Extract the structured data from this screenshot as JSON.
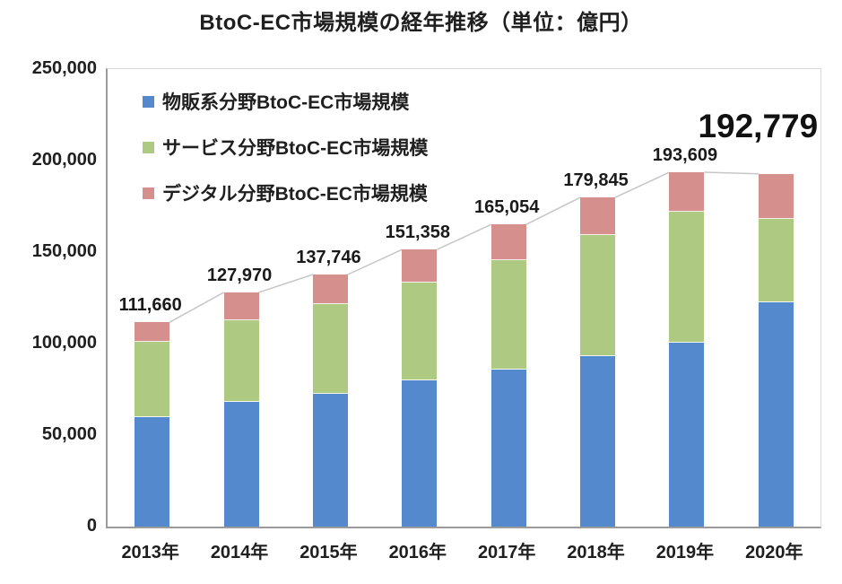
{
  "title": "BtoC-EC市場規模の経年推移（単位：億円）",
  "chart_data": {
    "type": "bar",
    "stacked": true,
    "grid": false,
    "legend_position": "inside-top-left",
    "categories": [
      "2013年",
      "2014年",
      "2015年",
      "2016年",
      "2017年",
      "2018年",
      "2019年",
      "2020年"
    ],
    "series": [
      {
        "name": "物販系分野BtoC-EC市場規模",
        "color": "#5589CD",
        "values": [
          59931,
          68043,
          72398,
          80043,
          86008,
          92992,
          100515,
          122333
        ]
      },
      {
        "name": "サービス分野BtoC-EC市場規模",
        "color": "#AECA82",
        "values": [
          41210,
          44816,
          49014,
          53532,
          59568,
          66471,
          71672,
          45832
        ]
      },
      {
        "name": "デジタル分野BtoC-EC市場規模",
        "color": "#D5908E",
        "values": [
          10519,
          15111,
          16334,
          17783,
          19478,
          20382,
          21422,
          24614
        ]
      }
    ],
    "totals": [
      111660,
      127970,
      137746,
      151358,
      165054,
      179845,
      193609,
      192779
    ],
    "total_labels": [
      "111,660",
      "127,970",
      "137,746",
      "151,358",
      "165,054",
      "179,845",
      "193,609",
      "192,779"
    ],
    "highlight_last_total": true,
    "connector_line": true,
    "ylim": [
      0,
      250000
    ],
    "ytick_labels": [
      "0",
      "50,000",
      "100,000",
      "150,000",
      "200,000",
      "250,000"
    ],
    "ytick_values": [
      0,
      50000,
      100000,
      150000,
      200000,
      250000
    ],
    "xlabel": "",
    "ylabel": ""
  },
  "colors": {
    "connector_line": "#c6c6c6",
    "axis_line": "#9b9b9b",
    "plot_border": "#d9d9d9",
    "text": "#1f1f1f"
  }
}
